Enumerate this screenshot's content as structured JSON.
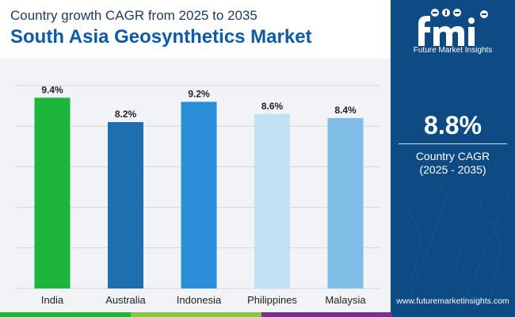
{
  "header": {
    "subtitle": "Country growth CAGR from 2025 to 2035",
    "title": "South Asia Geosynthetics Market"
  },
  "side": {
    "logo_text": "Future Market Insights",
    "cagr_value": "8.8%",
    "cagr_label": "Country CAGR",
    "cagr_period": "(2025 - 2035)",
    "website": "www.futuremarketinsights.com"
  },
  "chart_data": {
    "type": "bar",
    "categories": [
      "India",
      "Australia",
      "Indonesia",
      "Philippines",
      "Malaysia"
    ],
    "values": [
      9.4,
      8.2,
      9.2,
      8.6,
      8.4
    ],
    "value_labels": [
      "9.4%",
      "8.2%",
      "9.2%",
      "8.6%",
      "8.4%"
    ],
    "colors": [
      "#1db53a",
      "#1e6fb0",
      "#2b8ed8",
      "#c3e1f4",
      "#7fbde6"
    ],
    "ylim": [
      0,
      10
    ],
    "grid": true,
    "legend": "none"
  },
  "colors": {
    "title": "#0e5aa7",
    "side_panel": "#0e4a83",
    "chart_background": "#f1f3f6",
    "bottom_bar": [
      "#1db53a",
      "#8bc34a",
      "#7b2f8e",
      "#0e4a83"
    ]
  }
}
